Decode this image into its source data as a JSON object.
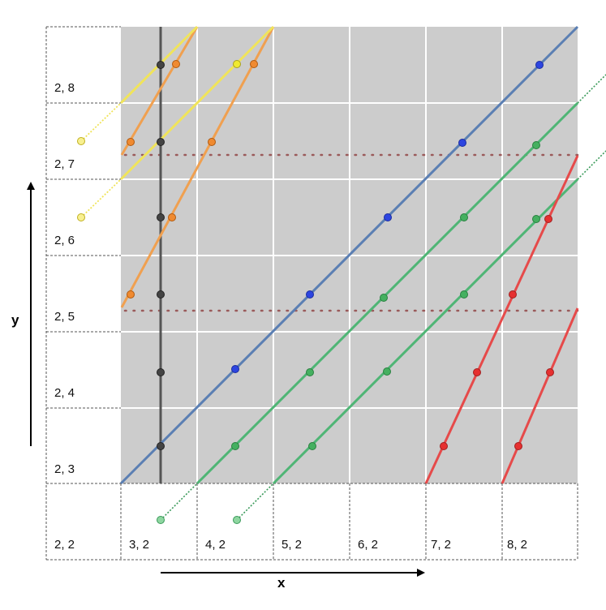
{
  "axis_labels": {
    "x": "x",
    "y": "y"
  },
  "row_labels": [
    "2, 8",
    "2, 7",
    "2, 6",
    "2, 5",
    "2, 4",
    "2, 3",
    "2, 2"
  ],
  "col_labels": [
    "3, 2",
    "4, 2",
    "5, 2",
    "6, 2",
    "7, 2",
    "8, 2"
  ],
  "colors": {
    "background": "#cccccc",
    "grid": "#ffffff",
    "blue": "#5b7fb3",
    "green": "#4fb575",
    "red": "#e64a4a",
    "orange": "#f0a050",
    "yellow": "#f0e45a",
    "black": "#555555",
    "dotted_guides": "#9a5a5a"
  }
}
